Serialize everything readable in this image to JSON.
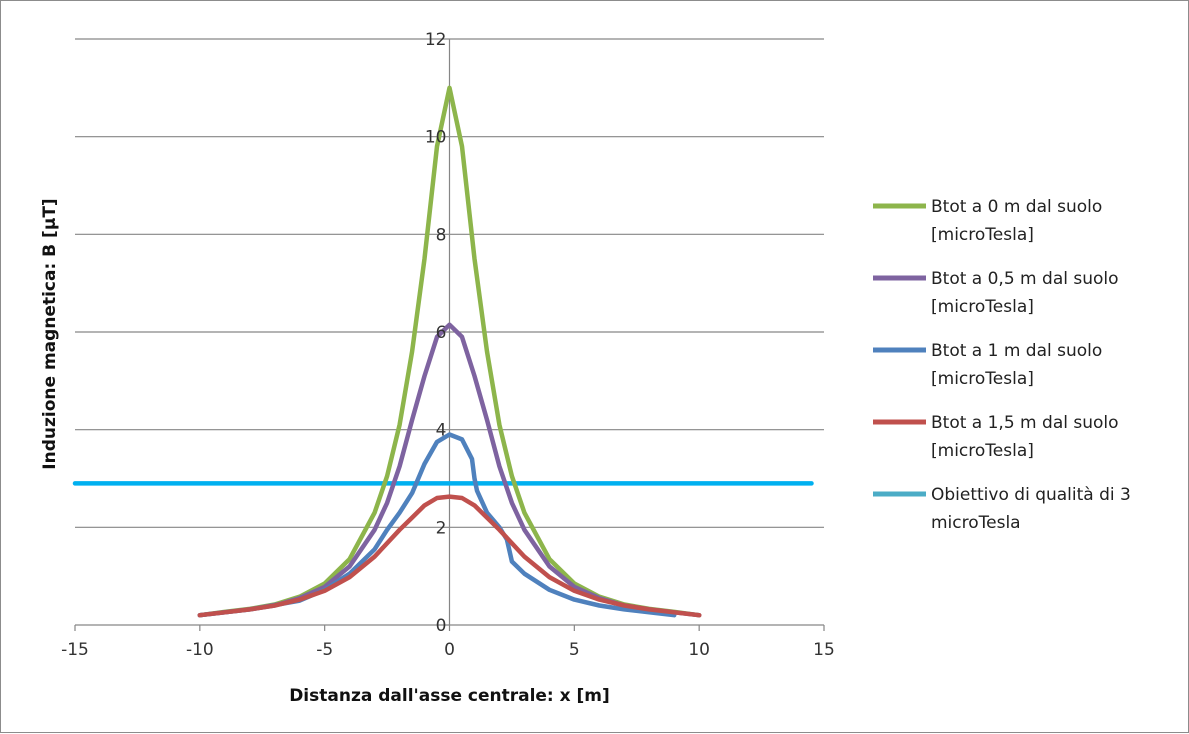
{
  "chart_data": {
    "type": "line",
    "title": "",
    "xlabel": "Distanza dall'asse centrale: x [m]",
    "ylabel": "Induzione magnetica: B [μT]",
    "xlim": [
      -15,
      15
    ],
    "ylim": [
      0,
      12
    ],
    "xticks": [
      -15,
      -10,
      -5,
      0,
      5,
      10,
      15
    ],
    "yticks": [
      0,
      2,
      4,
      6,
      8,
      10,
      12
    ],
    "grid": "horizontal",
    "legend_position": "right",
    "series": [
      {
        "name_lines": [
          "Btot a 0 m dal suolo",
          "[microTesla]"
        ],
        "color": "#8db54b",
        "x": [
          -10,
          -9,
          -8,
          -7,
          -6,
          -5,
          -4,
          -3,
          -2.5,
          -2,
          -1.5,
          -1,
          -0.5,
          0,
          0.5,
          1,
          1.5,
          2,
          2.5,
          3,
          4,
          5,
          6,
          7,
          8,
          9,
          10
        ],
        "y": [
          0.2,
          0.27,
          0.33,
          0.42,
          0.58,
          0.85,
          1.35,
          2.3,
          3.05,
          4.1,
          5.6,
          7.5,
          9.8,
          11.0,
          9.8,
          7.5,
          5.6,
          4.1,
          3.05,
          2.3,
          1.35,
          0.85,
          0.58,
          0.42,
          0.33,
          0.27,
          0.2
        ]
      },
      {
        "name_lines": [
          "Btot a 0,5 m dal suolo",
          "[microTesla]"
        ],
        "color": "#7e63a0",
        "x": [
          -10,
          -9,
          -8,
          -7,
          -6,
          -5,
          -4,
          -3,
          -2.5,
          -2,
          -1.5,
          -1,
          -0.5,
          0,
          0.5,
          1,
          1.5,
          2,
          2.5,
          3,
          4,
          5,
          6,
          7,
          8,
          9,
          10
        ],
        "y": [
          0.2,
          0.26,
          0.32,
          0.4,
          0.55,
          0.78,
          1.2,
          1.95,
          2.5,
          3.25,
          4.2,
          5.1,
          5.9,
          6.15,
          5.9,
          5.1,
          4.2,
          3.25,
          2.5,
          1.95,
          1.2,
          0.78,
          0.55,
          0.4,
          0.32,
          0.26,
          0.2
        ]
      },
      {
        "name_lines": [
          "Btot a 1 m dal suolo",
          "[microTesla]"
        ],
        "color": "#4f81bd",
        "x": [
          -10,
          -8,
          -6,
          -5,
          -4,
          -3,
          -2.5,
          -2,
          -1.5,
          -1,
          -0.5,
          0,
          0.5,
          0.9,
          1.0,
          1.1,
          1.5,
          2,
          2.3,
          2.5,
          3,
          4,
          5,
          6,
          7,
          8,
          9
        ],
        "y": [
          0.2,
          0.32,
          0.5,
          0.72,
          1.05,
          1.55,
          1.95,
          2.3,
          2.7,
          3.3,
          3.75,
          3.9,
          3.8,
          3.4,
          3.0,
          2.75,
          2.3,
          2.0,
          1.75,
          1.3,
          1.05,
          0.72,
          0.52,
          0.4,
          0.32,
          0.26,
          0.2
        ]
      },
      {
        "name_lines": [
          "Btot a 1,5 m dal suolo",
          "[microTesla]"
        ],
        "color": "#c0504d",
        "x": [
          -10,
          -9,
          -8,
          -7,
          -6,
          -5,
          -4,
          -3,
          -2,
          -1.5,
          -1,
          -0.5,
          0,
          0.5,
          1,
          1.5,
          2,
          3,
          4,
          5,
          6,
          7,
          8,
          9,
          10
        ],
        "y": [
          0.2,
          0.26,
          0.32,
          0.4,
          0.52,
          0.7,
          0.98,
          1.4,
          1.95,
          2.2,
          2.45,
          2.6,
          2.63,
          2.6,
          2.45,
          2.2,
          1.95,
          1.4,
          0.98,
          0.7,
          0.52,
          0.4,
          0.32,
          0.26,
          0.2
        ]
      },
      {
        "name_lines": [
          "Obiettivo di qualità di 3",
          "microTesla"
        ],
        "color": "#00b0f0",
        "legend_color": "#4bacc6",
        "x": [
          -15,
          14.5
        ],
        "y": [
          2.9,
          2.9
        ]
      }
    ]
  }
}
